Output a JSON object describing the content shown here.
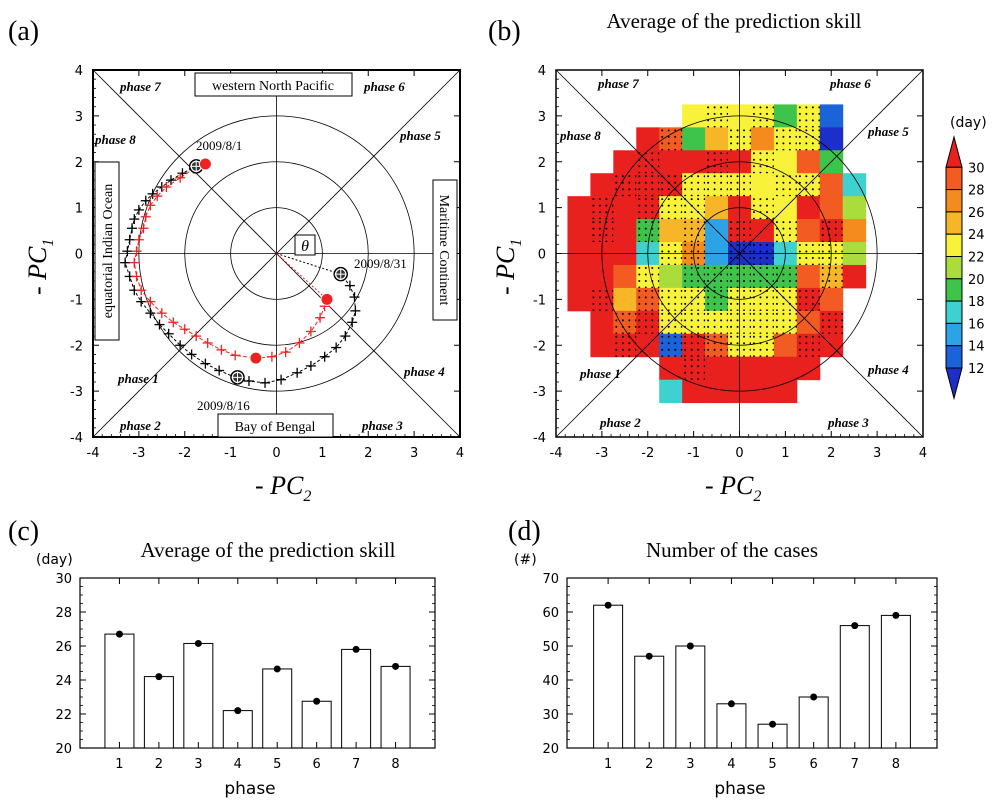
{
  "colors": {
    "red": "#ee2222",
    "black": "#000000"
  },
  "panels": {
    "a": {
      "letter": "(a)",
      "xlabel": "- PC",
      "xlabel_sub": "2",
      "ylabel": "- PC",
      "ylabel_sub": "1",
      "ticks": [
        "-4",
        "-3",
        "-2",
        "-1",
        "0",
        "1",
        "2",
        "3",
        "4"
      ],
      "phases": [
        "phase 1",
        "phase 2",
        "phase 3",
        "phase 4",
        "phase 5",
        "phase 6",
        "phase 7",
        "phase 8"
      ],
      "region_top": "western North Pacific",
      "region_bottom": "Bay of Bengal",
      "region_left": "equatorial Indian Ocean",
      "region_right": "Maritime Continent",
      "theta": "θ",
      "dates": [
        "2009/8/1",
        "2009/8/16",
        "2009/8/31"
      ]
    },
    "b": {
      "letter": "(b)",
      "title": "Average of the prediction skill",
      "colorbar_unit": "(day)",
      "colorbar_ticks": [
        "30",
        "28",
        "26",
        "24",
        "22",
        "20",
        "18",
        "16",
        "14",
        "12"
      ],
      "colorbar_colors": [
        "#e8201e",
        "#f25b22",
        "#f58a1e",
        "#f7b528",
        "#f8f23a",
        "#aadc3c",
        "#3ec44a",
        "#3fd0d0",
        "#2ca3e6",
        "#1a63d8",
        "#1c2fc8"
      ]
    },
    "c": {
      "letter": "(c)",
      "title": "Average of the prediction skill",
      "unit": "(day)",
      "xlabel": "phase",
      "yticks": [
        "20",
        "22",
        "24",
        "26",
        "28",
        "30"
      ]
    },
    "d": {
      "letter": "(d)",
      "title": "Number of the cases",
      "unit": "(#)",
      "xlabel": "phase",
      "yticks": [
        "20",
        "30",
        "40",
        "50",
        "60",
        "70"
      ]
    }
  },
  "chart_data": [
    {
      "panel": "a",
      "type": "scatter",
      "xlim": [
        -4,
        4
      ],
      "ylim": [
        -4,
        4
      ],
      "series": [
        {
          "color": "black",
          "points": [
            [
              -1.75,
              1.9
            ],
            [
              -2.05,
              1.75
            ],
            [
              -2.3,
              1.6
            ],
            [
              -2.5,
              1.45
            ],
            [
              -2.7,
              1.3
            ],
            [
              -2.85,
              1.15
            ],
            [
              -3.0,
              0.95
            ],
            [
              -3.1,
              0.75
            ],
            [
              -3.15,
              0.55
            ],
            [
              -3.2,
              0.3
            ],
            [
              -3.25,
              0.05
            ],
            [
              -3.3,
              -0.2
            ],
            [
              -3.2,
              -0.5
            ],
            [
              -3.1,
              -0.8
            ],
            [
              -2.95,
              -1.05
            ],
            [
              -2.75,
              -1.3
            ],
            [
              -2.55,
              -1.55
            ],
            [
              -2.35,
              -1.75
            ],
            [
              -2.1,
              -2.0
            ],
            [
              -1.85,
              -2.2
            ],
            [
              -1.55,
              -2.4
            ],
            [
              -1.25,
              -2.55
            ],
            [
              -0.9,
              -2.7
            ],
            [
              -0.6,
              -2.78
            ],
            [
              -0.25,
              -2.82
            ],
            [
              0.1,
              -2.75
            ],
            [
              0.45,
              -2.6
            ],
            [
              0.75,
              -2.45
            ],
            [
              1.05,
              -2.25
            ],
            [
              1.3,
              -2.05
            ],
            [
              1.5,
              -1.8
            ],
            [
              1.65,
              -1.5
            ],
            [
              1.72,
              -1.25
            ],
            [
              1.7,
              -0.95
            ],
            [
              1.6,
              -0.7
            ],
            [
              1.4,
              -0.45
            ]
          ]
        },
        {
          "color": "red",
          "points": [
            [
              -1.55,
              1.95
            ],
            [
              -1.8,
              1.85
            ],
            [
              -2.1,
              1.65
            ],
            [
              -2.4,
              1.45
            ],
            [
              -2.6,
              1.25
            ],
            [
              -2.75,
              1.05
            ],
            [
              -2.85,
              0.8
            ],
            [
              -2.9,
              0.55
            ],
            [
              -3.0,
              0.3
            ],
            [
              -3.05,
              0.05
            ],
            [
              -3.1,
              -0.2
            ],
            [
              -3.05,
              -0.5
            ],
            [
              -2.95,
              -0.8
            ],
            [
              -2.75,
              -1.05
            ],
            [
              -2.5,
              -1.3
            ],
            [
              -2.25,
              -1.5
            ],
            [
              -2.0,
              -1.65
            ],
            [
              -1.75,
              -1.8
            ],
            [
              -1.5,
              -1.95
            ],
            [
              -1.2,
              -2.1
            ],
            [
              -0.9,
              -2.22
            ],
            [
              -0.45,
              -2.28
            ],
            [
              -0.1,
              -2.25
            ],
            [
              0.2,
              -2.15
            ],
            [
              0.5,
              -1.95
            ],
            [
              0.75,
              -1.7
            ],
            [
              0.95,
              -1.4
            ],
            [
              1.05,
              -1.15
            ],
            [
              1.1,
              -1.0
            ]
          ]
        }
      ],
      "markers": [
        {
          "label": "2009/8/1",
          "black": [
            -1.75,
            1.9
          ],
          "red": [
            -1.55,
            1.95
          ]
        },
        {
          "label": "2009/8/16",
          "black": [
            -0.85,
            -2.7
          ],
          "red": [
            -0.45,
            -2.28
          ]
        },
        {
          "label": "2009/8/31",
          "black": [
            1.4,
            -0.45
          ],
          "red": [
            1.1,
            -1.0
          ]
        }
      ]
    },
    {
      "panel": "b",
      "type": "heatmap",
      "xlim": [
        -4,
        4
      ],
      "ylim": [
        -4,
        4
      ],
      "cells": []
    },
    {
      "panel": "c",
      "type": "bar",
      "title": "Average of the prediction skill",
      "categories": [
        "1",
        "2",
        "3",
        "4",
        "5",
        "6",
        "7",
        "8"
      ],
      "values": [
        26.7,
        24.2,
        26.15,
        22.2,
        24.65,
        22.75,
        25.8,
        24.8
      ],
      "ylim": [
        20,
        30
      ],
      "xlabel": "phase",
      "ylabel": "(day)"
    },
    {
      "panel": "d",
      "type": "bar",
      "title": "Number of the cases",
      "categories": [
        "1",
        "2",
        "3",
        "4",
        "5",
        "6",
        "7",
        "8"
      ],
      "values": [
        62,
        47,
        50,
        33,
        27,
        35,
        56,
        59
      ],
      "ylim": [
        20,
        70
      ],
      "xlabel": "phase",
      "ylabel": "(#)"
    }
  ]
}
